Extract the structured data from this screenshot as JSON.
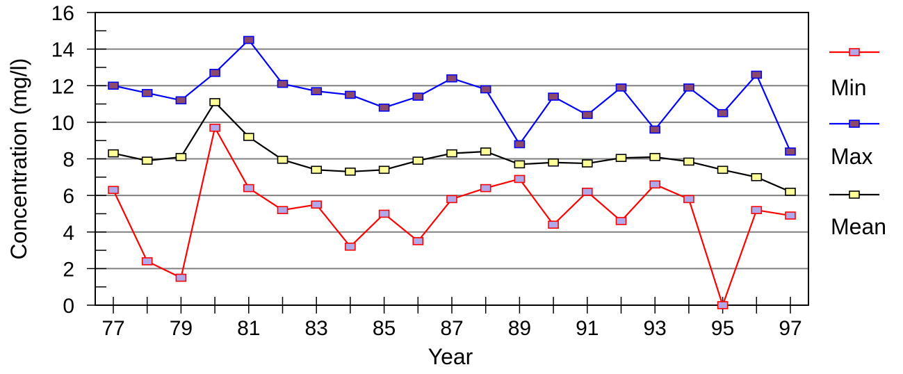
{
  "chart_data": {
    "type": "line",
    "title": "",
    "xlabel": "Year",
    "ylabel": "Concentration (mg/l)",
    "ylim": [
      0,
      16
    ],
    "xlim": [
      77,
      97
    ],
    "y_ticks": [
      0,
      2,
      4,
      6,
      8,
      10,
      12,
      14,
      16
    ],
    "x_tick_labels": [
      "77",
      "79",
      "81",
      "83",
      "85",
      "87",
      "89",
      "91",
      "93",
      "95",
      "97"
    ],
    "grid": "horizontal",
    "legend_position": "right",
    "x": [
      77,
      78,
      79,
      80,
      81,
      82,
      83,
      84,
      85,
      86,
      87,
      88,
      89,
      90,
      91,
      92,
      93,
      94,
      95,
      96,
      97
    ],
    "series": [
      {
        "name": "Min",
        "line_color": "#ff0000",
        "marker_color": "#b0a8e8",
        "values": [
          6.3,
          2.4,
          1.5,
          9.7,
          6.4,
          5.2,
          5.5,
          3.2,
          5.0,
          3.5,
          5.8,
          6.4,
          6.9,
          4.4,
          6.2,
          4.6,
          6.6,
          5.8,
          0.0,
          5.2,
          4.9
        ]
      },
      {
        "name": "Max",
        "line_color": "#0000ff",
        "marker_color": "#8b4a6b",
        "values": [
          12.0,
          11.6,
          11.2,
          12.7,
          14.5,
          12.1,
          11.7,
          11.5,
          10.8,
          11.4,
          12.4,
          11.8,
          8.8,
          11.4,
          10.4,
          11.9,
          9.6,
          11.9,
          10.5,
          12.6,
          8.4
        ]
      },
      {
        "name": "Mean",
        "line_color": "#000000",
        "marker_color": "#ffff99",
        "values": [
          8.3,
          7.9,
          8.1,
          11.1,
          9.2,
          7.95,
          7.4,
          7.3,
          7.4,
          7.9,
          8.3,
          8.4,
          7.7,
          7.8,
          7.75,
          8.05,
          8.1,
          7.85,
          7.4,
          7.0,
          6.2
        ]
      }
    ]
  }
}
